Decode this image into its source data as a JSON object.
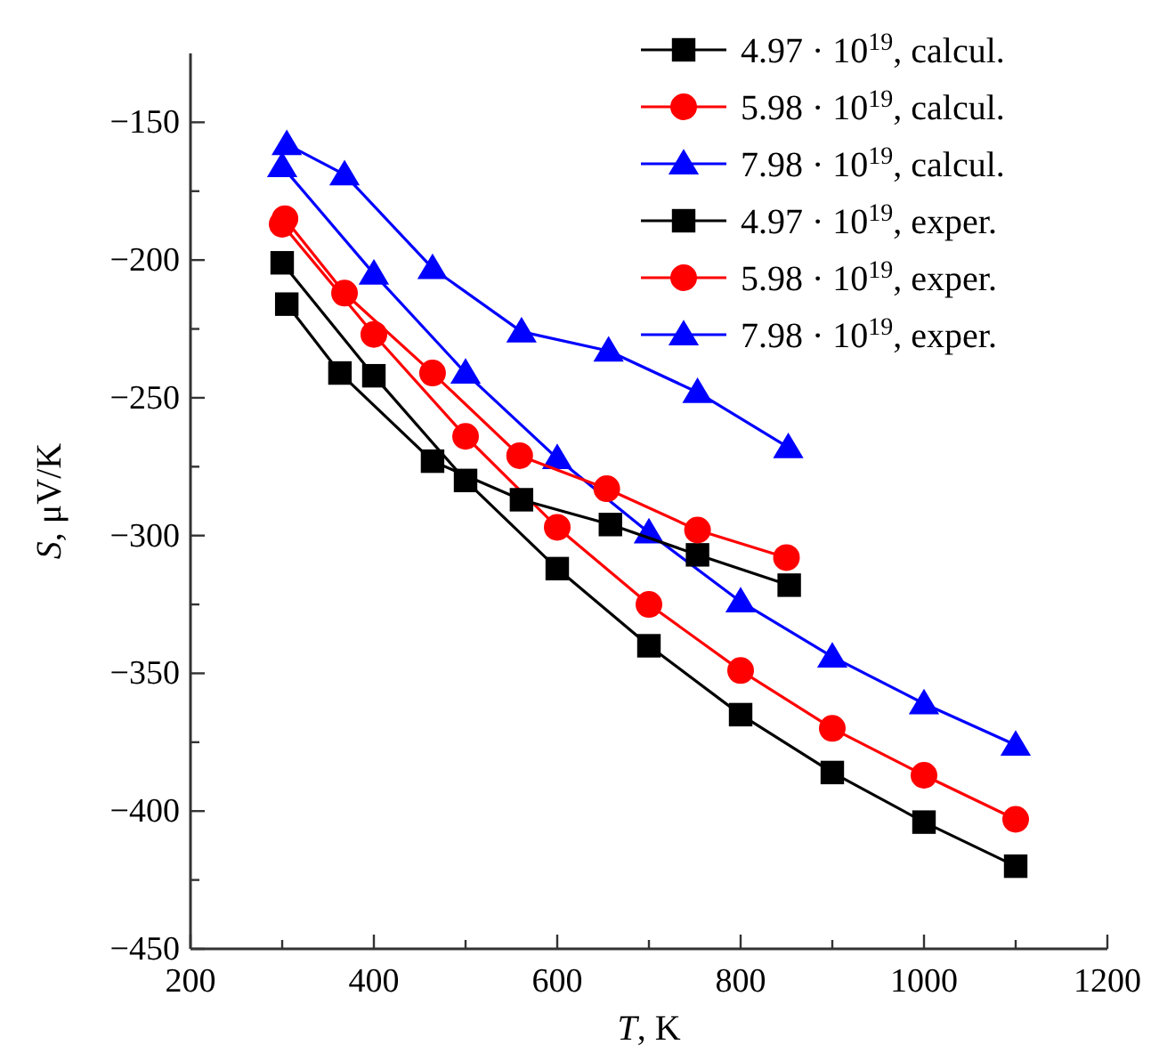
{
  "chart_data": {
    "type": "line",
    "xlabel": "T, K",
    "ylabel": "S, μV/K",
    "xlim": [
      200,
      1200
    ],
    "xticks": [
      200,
      400,
      600,
      800,
      1000,
      1200
    ],
    "ylim": [
      -450,
      -125
    ],
    "yticks": [
      -450,
      -400,
      -350,
      -300,
      -250,
      -200,
      -150
    ],
    "grid": false,
    "legend": "top right",
    "line_style": "solid",
    "series": [
      {
        "name": "4.97 · 10$^{19}$, calcul.",
        "color": "#000000",
        "marker": "square",
        "x": [
          300,
          400,
          500,
          600,
          700,
          800,
          900,
          1000,
          1100
        ],
        "values": [
          -201,
          -242,
          -280,
          -312,
          -340,
          -365,
          -386,
          -404,
          -420
        ]
      },
      {
        "name": "5.98 · 10$^{19}$, calcul.",
        "color": "#ff0000",
        "marker": "circle",
        "x": [
          300,
          400,
          500,
          600,
          700,
          800,
          900,
          1000,
          1100
        ],
        "values": [
          -187,
          -227,
          -264,
          -297,
          -325,
          -349,
          -370,
          -387,
          -403
        ]
      },
      {
        "name": "7.98 · 10$^{19}$, calcul.",
        "color": "#0000ff",
        "marker": "triangle",
        "x": [
          300,
          400,
          500,
          600,
          700,
          800,
          900,
          1000,
          1100
        ],
        "values": [
          -166,
          -205,
          -241,
          -272,
          -299,
          -324,
          -344,
          -361,
          -376
        ]
      },
      {
        "name": "4.97 · 10$^{19}$, exper.",
        "color": "#000000",
        "marker": "square",
        "x": [
          305,
          363,
          464,
          561,
          658,
          753,
          853
        ],
        "values": [
          -216,
          -241,
          -273,
          -287,
          -296,
          -307,
          -318
        ]
      },
      {
        "name": "5.98 · 10$^{19}$, exper.",
        "color": "#ff0000",
        "marker": "circle",
        "x": [
          303,
          368,
          464,
          559,
          654,
          753,
          850
        ],
        "values": [
          -185,
          -212,
          -241,
          -271,
          -283,
          -298,
          -308
        ]
      },
      {
        "name": "7.98 · 10$^{19}$, exper.",
        "color": "#0000ff",
        "marker": "triangle",
        "x": [
          305,
          368,
          464,
          561,
          656,
          753,
          852
        ],
        "values": [
          -158,
          -169,
          -203,
          -226,
          -233,
          -248,
          -268
        ]
      }
    ]
  }
}
